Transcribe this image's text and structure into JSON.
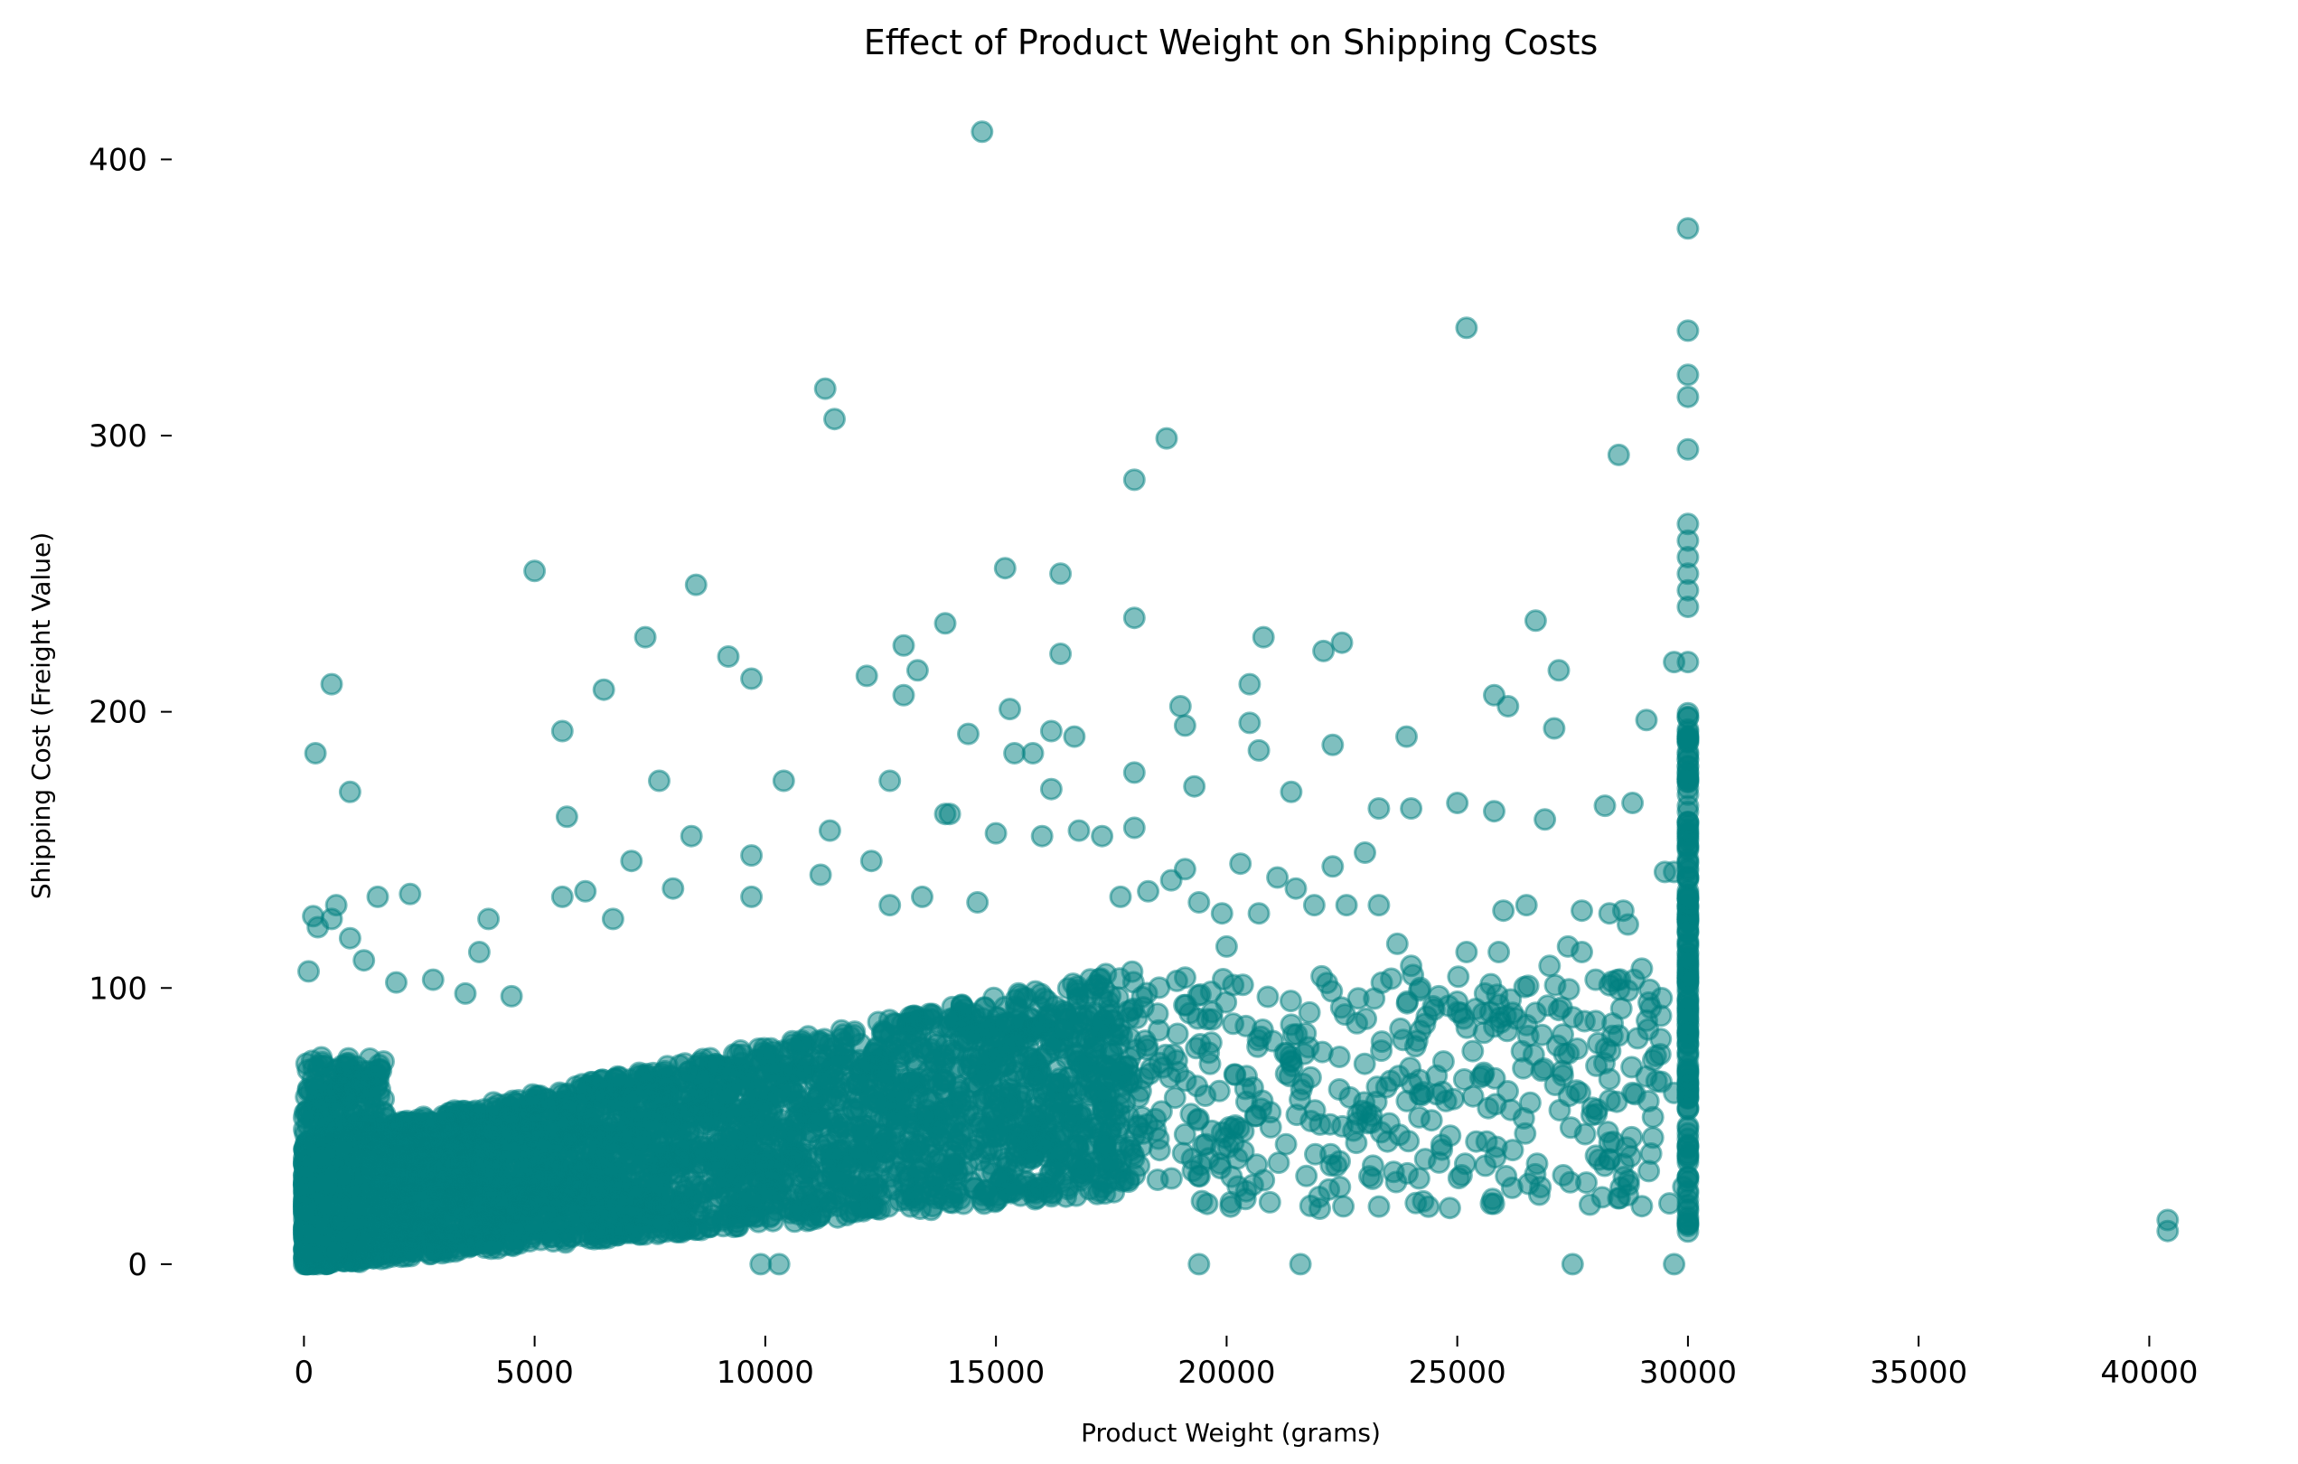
{
  "chart_data": {
    "type": "scatter",
    "title": "Effect of Product Weight on Shipping Costs",
    "xlabel": "Product Weight (grams)",
    "ylabel": "Shipping Cost (Freight Value)",
    "xlim": [
      -1300,
      41500
    ],
    "ylim": [
      -20,
      425
    ],
    "xticks": [
      0,
      5000,
      10000,
      15000,
      20000,
      25000,
      30000,
      35000,
      40000
    ],
    "yticks": [
      0,
      100,
      200,
      300,
      400
    ],
    "grid": false,
    "marker_color": "#008080",
    "marker_alpha": 0.5,
    "highlighted_points": [
      [
        14700,
        410
      ],
      [
        30000,
        375
      ],
      [
        25200,
        339
      ],
      [
        30000,
        338
      ],
      [
        11300,
        317
      ],
      [
        30000,
        322
      ],
      [
        30000,
        314
      ],
      [
        11500,
        306
      ],
      [
        18700,
        299
      ],
      [
        28500,
        293
      ],
      [
        30000,
        295
      ],
      [
        18000,
        284
      ],
      [
        30000,
        268
      ],
      [
        30000,
        262
      ],
      [
        30000,
        256
      ],
      [
        30000,
        250
      ],
      [
        30000,
        244
      ],
      [
        30000,
        238
      ],
      [
        5000,
        251
      ],
      [
        15200,
        252
      ],
      [
        16400,
        250
      ],
      [
        8500,
        246
      ],
      [
        30000,
        218
      ],
      [
        29700,
        218
      ],
      [
        7400,
        227
      ],
      [
        9200,
        220
      ],
      [
        13000,
        224
      ],
      [
        13900,
        232
      ],
      [
        18000,
        234
      ],
      [
        20800,
        227
      ],
      [
        22500,
        225
      ],
      [
        22100,
        222
      ],
      [
        26700,
        233
      ],
      [
        16400,
        221
      ],
      [
        600,
        210
      ],
      [
        6500,
        208
      ],
      [
        9700,
        212
      ],
      [
        12200,
        213
      ],
      [
        13300,
        215
      ],
      [
        13000,
        206
      ],
      [
        20500,
        210
      ],
      [
        25800,
        206
      ],
      [
        26100,
        202
      ],
      [
        27200,
        215
      ],
      [
        250,
        185
      ],
      [
        1000,
        171
      ],
      [
        5600,
        193
      ],
      [
        14400,
        192
      ],
      [
        15300,
        201
      ],
      [
        16200,
        193
      ],
      [
        16700,
        191
      ],
      [
        18000,
        178
      ],
      [
        19000,
        202
      ],
      [
        19100,
        195
      ],
      [
        20500,
        196
      ],
      [
        20700,
        186
      ],
      [
        21400,
        171
      ],
      [
        23900,
        191
      ],
      [
        27100,
        194
      ],
      [
        29100,
        197
      ],
      [
        30000,
        190
      ],
      [
        30000,
        170
      ],
      [
        30000,
        160
      ],
      [
        30000,
        150
      ],
      [
        30000,
        140
      ],
      [
        30000,
        130
      ],
      [
        30000,
        120
      ],
      [
        30000,
        110
      ],
      [
        30000,
        100
      ],
      [
        30000,
        90
      ],
      [
        30000,
        80
      ],
      [
        30000,
        70
      ],
      [
        30000,
        60
      ],
      [
        30000,
        50
      ],
      [
        30000,
        40
      ],
      [
        30000,
        30
      ],
      [
        30000,
        20
      ],
      [
        30000,
        15
      ],
      [
        40400,
        16
      ],
      [
        40400,
        12
      ],
      [
        7700,
        175
      ],
      [
        12700,
        175
      ],
      [
        10400,
        175
      ],
      [
        13900,
        163
      ],
      [
        5700,
        162
      ],
      [
        19300,
        173
      ],
      [
        22300,
        188
      ],
      [
        23300,
        165
      ],
      [
        24000,
        165
      ],
      [
        25000,
        167
      ],
      [
        25800,
        164
      ],
      [
        26900,
        161
      ],
      [
        28200,
        166
      ],
      [
        28800,
        167
      ],
      [
        29500,
        142
      ],
      [
        29700,
        142
      ],
      [
        25200,
        113
      ],
      [
        25900,
        113
      ],
      [
        26000,
        128
      ],
      [
        26500,
        130
      ],
      [
        27700,
        128
      ],
      [
        28300,
        127
      ],
      [
        28600,
        128
      ],
      [
        28700,
        123
      ],
      [
        29000,
        107
      ],
      [
        28300,
        101
      ],
      [
        28700,
        99
      ],
      [
        27000,
        108
      ],
      [
        27400,
        115
      ],
      [
        27700,
        113
      ],
      [
        28000,
        103
      ],
      [
        29600,
        22
      ],
      [
        29000,
        21
      ],
      [
        29900,
        28
      ],
      [
        28700,
        25
      ],
      [
        28300,
        44
      ],
      [
        28300,
        38
      ],
      [
        27500,
        0
      ],
      [
        29700,
        0
      ],
      [
        21600,
        0
      ],
      [
        19400,
        0
      ],
      [
        10300,
        0
      ],
      [
        9900,
        0
      ],
      [
        2300,
        134
      ],
      [
        1600,
        133
      ],
      [
        5600,
        133
      ],
      [
        6100,
        135
      ],
      [
        6700,
        125
      ],
      [
        7100,
        146
      ],
      [
        8000,
        136
      ],
      [
        8400,
        155
      ],
      [
        4000,
        125
      ],
      [
        3800,
        113
      ],
      [
        2000,
        102
      ],
      [
        3500,
        98
      ],
      [
        4500,
        97
      ],
      [
        2800,
        103
      ],
      [
        9700,
        148
      ],
      [
        9700,
        133
      ],
      [
        11400,
        157
      ],
      [
        11200,
        141
      ],
      [
        12300,
        146
      ],
      [
        12700,
        130
      ],
      [
        13400,
        133
      ],
      [
        14000,
        163
      ],
      [
        14600,
        131
      ],
      [
        15000,
        156
      ],
      [
        15400,
        185
      ],
      [
        15800,
        185
      ],
      [
        16200,
        172
      ],
      [
        16000,
        155
      ],
      [
        16800,
        157
      ],
      [
        17300,
        155
      ],
      [
        17700,
        133
      ],
      [
        18000,
        158
      ],
      [
        18300,
        135
      ],
      [
        18800,
        139
      ],
      [
        19100,
        143
      ],
      [
        19400,
        131
      ],
      [
        19900,
        127
      ],
      [
        20000,
        115
      ],
      [
        20300,
        145
      ],
      [
        20700,
        127
      ],
      [
        21100,
        140
      ],
      [
        21500,
        136
      ],
      [
        21900,
        130
      ],
      [
        22300,
        144
      ],
      [
        22600,
        130
      ],
      [
        23000,
        149
      ],
      [
        23300,
        130
      ],
      [
        23700,
        116
      ],
      [
        24000,
        108
      ],
      [
        24200,
        100
      ],
      [
        24600,
        97
      ],
      [
        25000,
        95
      ],
      [
        25600,
        98
      ],
      [
        25800,
        86
      ],
      [
        26200,
        91
      ],
      [
        26700,
        91
      ],
      [
        27200,
        92
      ],
      [
        27600,
        78
      ],
      [
        28000,
        88
      ],
      [
        28300,
        67
      ],
      [
        28800,
        62
      ],
      [
        29100,
        68
      ],
      [
        29400,
        76
      ],
      [
        29700,
        62
      ],
      [
        200,
        126
      ],
      [
        300,
        122
      ],
      [
        700,
        130
      ],
      [
        1000,
        118
      ],
      [
        1300,
        110
      ],
      [
        600,
        125
      ],
      [
        100,
        106
      ]
    ]
  }
}
